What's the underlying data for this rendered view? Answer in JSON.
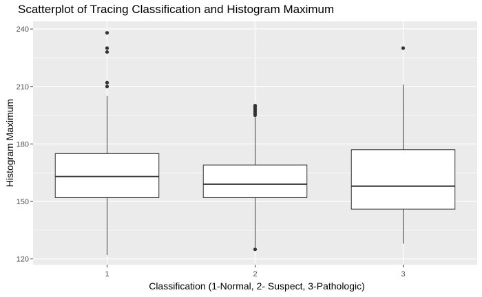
{
  "chart_data": {
    "type": "box",
    "title": "Scatterplot of Tracing Classification and Histogram Maximum",
    "xlabel": "Classification (1-Normal, 2- Suspect, 3-Pathologic)",
    "ylabel": "Histogram Maximum",
    "categories": [
      "1",
      "2",
      "3"
    ],
    "ylim": [
      117,
      244
    ],
    "yticks": [
      120,
      150,
      180,
      210,
      240
    ],
    "grid": true,
    "background": "#ebebeb",
    "boxes": [
      {
        "category": "1",
        "whisker_low": 122,
        "q1": 152,
        "median": 163,
        "q3": 175,
        "whisker_high": 205,
        "outliers": [
          210,
          212,
          228,
          230,
          238
        ]
      },
      {
        "category": "2",
        "whisker_low": 126,
        "q1": 152,
        "median": 159,
        "q3": 169,
        "whisker_high": 194,
        "outliers": [
          125,
          195,
          196,
          197,
          198,
          199,
          200
        ]
      },
      {
        "category": "3",
        "whisker_low": 128,
        "q1": 146,
        "median": 158,
        "q3": 177,
        "whisker_high": 211,
        "outliers": [
          230
        ]
      }
    ]
  }
}
